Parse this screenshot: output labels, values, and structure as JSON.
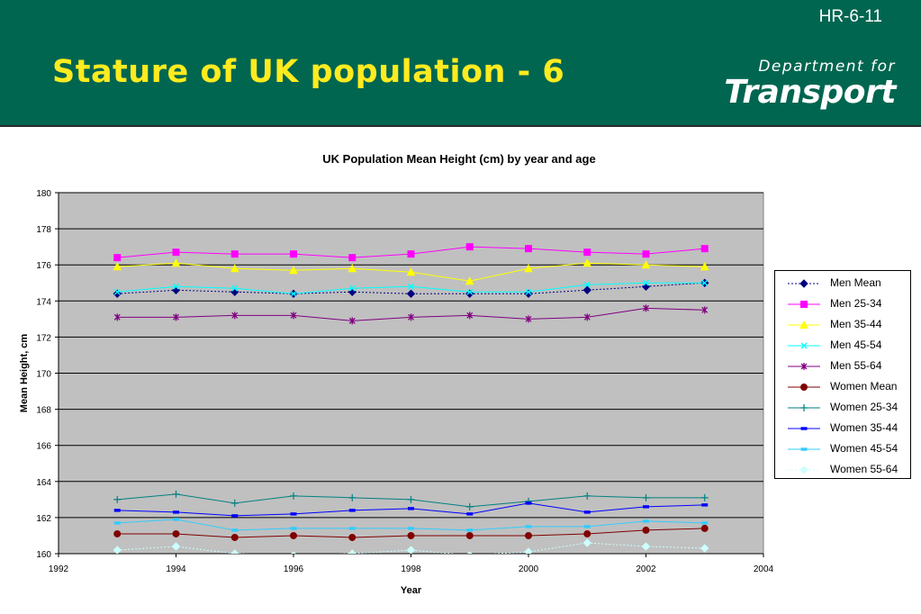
{
  "header": {
    "slide_code": "HR-6-11",
    "title": "Stature of UK population - 6",
    "logo_line1": "Department for",
    "logo_line2": "Transport"
  },
  "colors": {
    "header_bg": "#006650",
    "title_yellow": "#ffeb1f",
    "plot_bg": "#c0c0c0"
  },
  "chart_data": {
    "type": "line",
    "title": "UK Population Mean Height (cm) by year and age",
    "xlabel": "Year",
    "ylabel": "Mean Height, cm",
    "xlim": [
      1992,
      2004
    ],
    "ylim": [
      160,
      180
    ],
    "xticks": [
      "1992",
      "1994",
      "1996",
      "1998",
      "2000",
      "2002",
      "2004"
    ],
    "yticks": [
      "160",
      "162",
      "164",
      "166",
      "168",
      "170",
      "172",
      "174",
      "176",
      "178",
      "180"
    ],
    "grid": "horizontal",
    "legend_position": "right",
    "x": [
      1993,
      1994,
      1995,
      1996,
      1997,
      1998,
      1999,
      2000,
      2001,
      2002,
      2003
    ],
    "series": [
      {
        "name": "Men Mean",
        "color": "#000080",
        "marker": "diamond",
        "dash": true,
        "values": [
          174.4,
          174.6,
          174.5,
          174.4,
          174.5,
          174.4,
          174.4,
          174.4,
          174.6,
          174.8,
          175.0
        ]
      },
      {
        "name": "Men 25-34",
        "color": "#ff00ff",
        "marker": "square",
        "dash": false,
        "values": [
          176.4,
          176.7,
          176.6,
          176.6,
          176.4,
          176.6,
          177.0,
          176.9,
          176.7,
          176.6,
          176.9
        ]
      },
      {
        "name": "Men 35-44",
        "color": "#ffff00",
        "marker": "triangle",
        "dash": false,
        "values": [
          175.9,
          176.1,
          175.8,
          175.7,
          175.8,
          175.6,
          175.1,
          175.8,
          176.1,
          176.0,
          175.9
        ]
      },
      {
        "name": "Men 45-54",
        "color": "#00ffff",
        "marker": "x",
        "dash": false,
        "values": [
          174.5,
          174.8,
          174.7,
          174.4,
          174.7,
          174.8,
          174.5,
          174.5,
          174.9,
          175.0,
          175.0
        ]
      },
      {
        "name": "Men 55-64",
        "color": "#800080",
        "marker": "star",
        "dash": false,
        "values": [
          173.1,
          173.1,
          173.2,
          173.2,
          172.9,
          173.1,
          173.2,
          173.0,
          173.1,
          173.6,
          173.5
        ]
      },
      {
        "name": "Women Mean",
        "color": "#800000",
        "marker": "circle",
        "dash": false,
        "values": [
          161.1,
          161.1,
          160.9,
          161.0,
          160.9,
          161.0,
          161.0,
          161.0,
          161.1,
          161.3,
          161.4
        ]
      },
      {
        "name": "Women 25-34",
        "color": "#008080",
        "marker": "plus",
        "dash": false,
        "values": [
          163.0,
          163.3,
          162.8,
          163.2,
          163.1,
          163.0,
          162.6,
          162.9,
          163.2,
          163.1,
          163.1
        ]
      },
      {
        "name": "Women 35-44",
        "color": "#0000ff",
        "marker": "dash",
        "dash": false,
        "values": [
          162.4,
          162.3,
          162.1,
          162.2,
          162.4,
          162.5,
          162.2,
          162.8,
          162.3,
          162.6,
          162.7
        ]
      },
      {
        "name": "Women 45-54",
        "color": "#33ccff",
        "marker": "dash",
        "dash": false,
        "values": [
          161.7,
          161.9,
          161.3,
          161.4,
          161.4,
          161.4,
          161.3,
          161.5,
          161.5,
          161.8,
          161.7
        ]
      },
      {
        "name": "Women 55-64",
        "color": "#ccffff",
        "marker": "diamond",
        "dash": true,
        "values": [
          160.2,
          160.4,
          160.0,
          159.9,
          160.0,
          160.2,
          159.9,
          160.1,
          160.6,
          160.4,
          160.3
        ]
      }
    ]
  }
}
